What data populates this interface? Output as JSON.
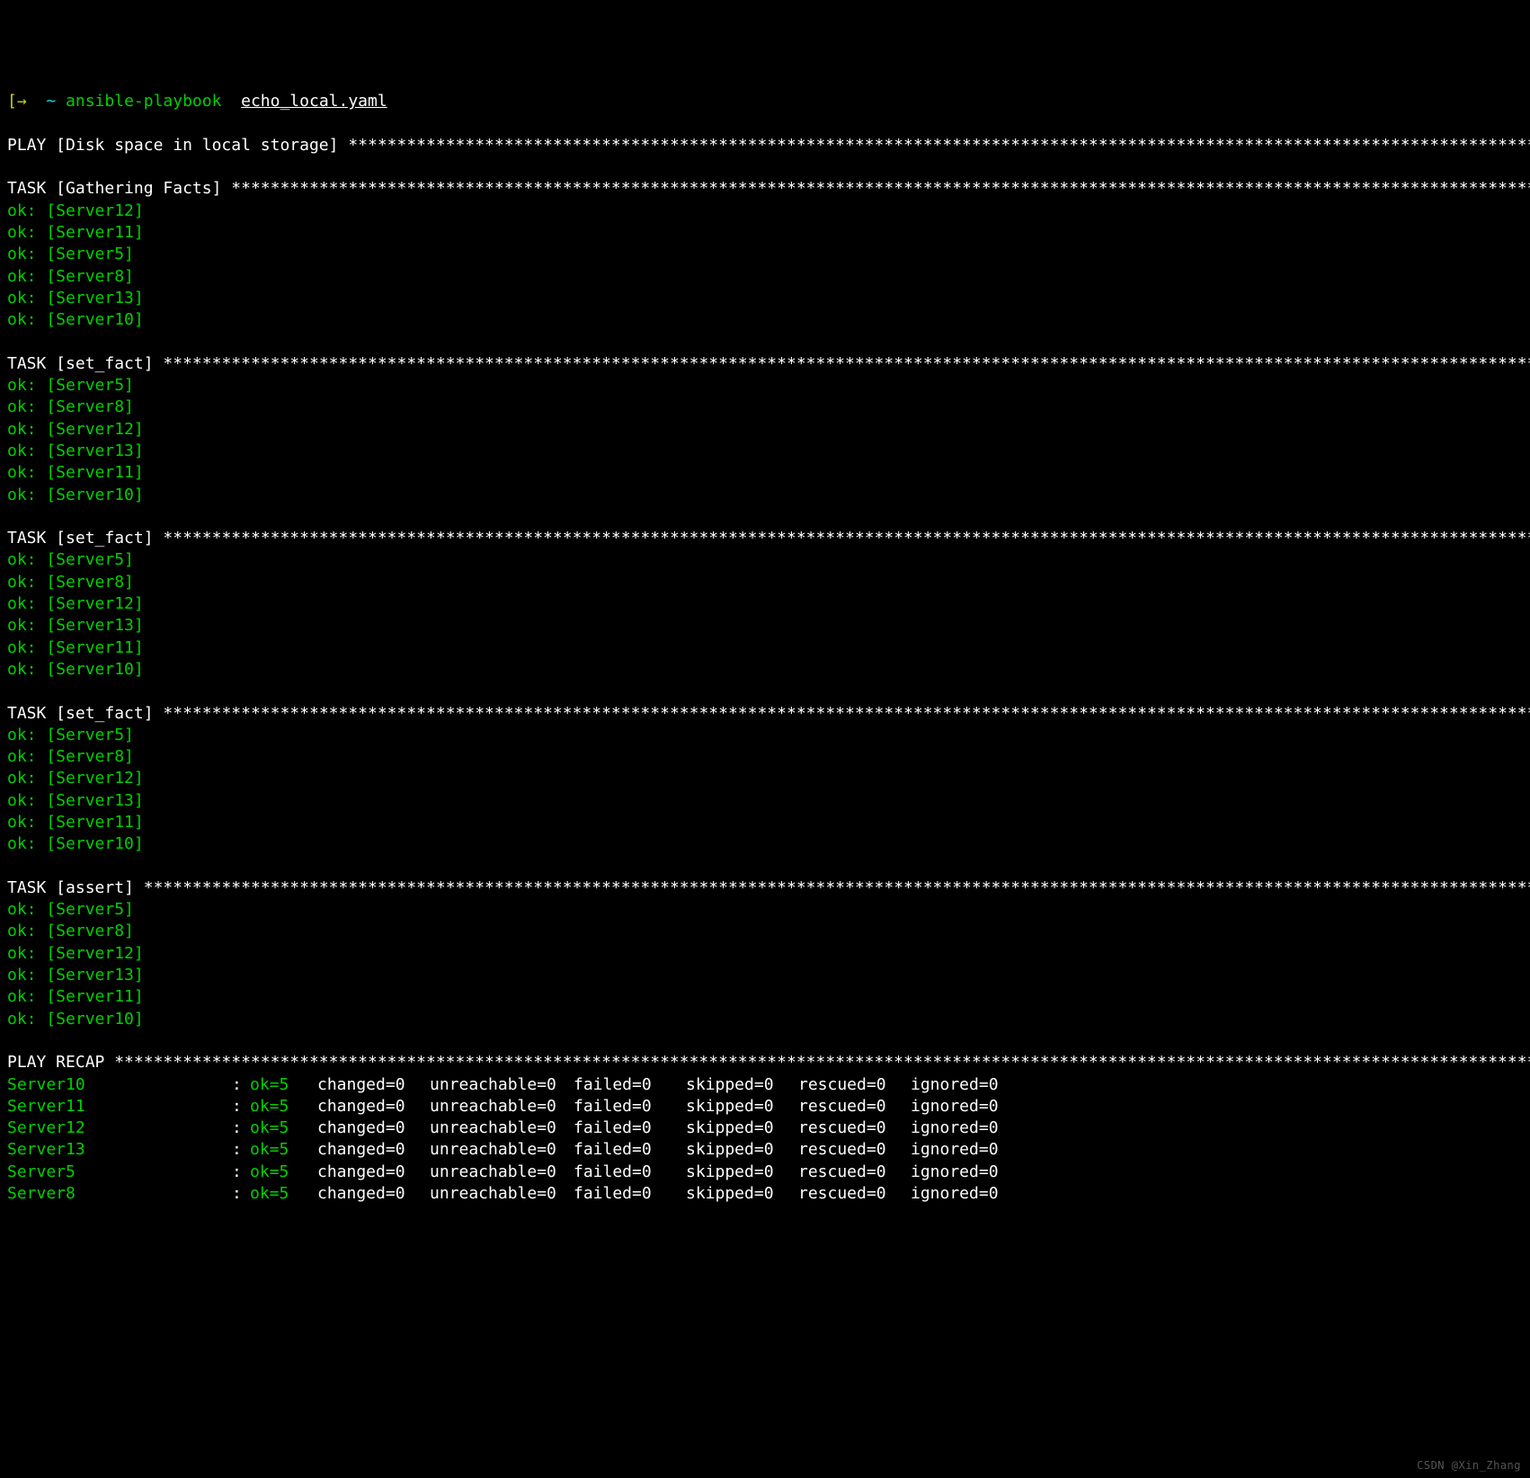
{
  "colors": {
    "background": "#000000",
    "foreground": "#ffffff",
    "ok_green": "#00d000",
    "prompt_cyan": "#00e0e0",
    "prompt_arrow": "#d0d000"
  },
  "prompt": {
    "arrow": "[→",
    "tilde": "~",
    "command": "ansible-playbook",
    "arg": "echo_local.yaml"
  },
  "play_header": {
    "prefix": "PLAY",
    "name": "Disk space in local storage"
  },
  "tasks": [
    {
      "name": "Gathering Facts",
      "results": [
        {
          "status": "ok",
          "host": "Server12"
        },
        {
          "status": "ok",
          "host": "Server11"
        },
        {
          "status": "ok",
          "host": "Server5"
        },
        {
          "status": "ok",
          "host": "Server8"
        },
        {
          "status": "ok",
          "host": "Server13"
        },
        {
          "status": "ok",
          "host": "Server10"
        }
      ]
    },
    {
      "name": "set_fact",
      "results": [
        {
          "status": "ok",
          "host": "Server5"
        },
        {
          "status": "ok",
          "host": "Server8"
        },
        {
          "status": "ok",
          "host": "Server12"
        },
        {
          "status": "ok",
          "host": "Server13"
        },
        {
          "status": "ok",
          "host": "Server11"
        },
        {
          "status": "ok",
          "host": "Server10"
        }
      ]
    },
    {
      "name": "set_fact",
      "results": [
        {
          "status": "ok",
          "host": "Server5"
        },
        {
          "status": "ok",
          "host": "Server8"
        },
        {
          "status": "ok",
          "host": "Server12"
        },
        {
          "status": "ok",
          "host": "Server13"
        },
        {
          "status": "ok",
          "host": "Server11"
        },
        {
          "status": "ok",
          "host": "Server10"
        }
      ]
    },
    {
      "name": "set_fact",
      "results": [
        {
          "status": "ok",
          "host": "Server5"
        },
        {
          "status": "ok",
          "host": "Server8"
        },
        {
          "status": "ok",
          "host": "Server12"
        },
        {
          "status": "ok",
          "host": "Server13"
        },
        {
          "status": "ok",
          "host": "Server11"
        },
        {
          "status": "ok",
          "host": "Server10"
        }
      ]
    },
    {
      "name": "assert",
      "results": [
        {
          "status": "ok",
          "host": "Server5"
        },
        {
          "status": "ok",
          "host": "Server8"
        },
        {
          "status": "ok",
          "host": "Server12"
        },
        {
          "status": "ok",
          "host": "Server13"
        },
        {
          "status": "ok",
          "host": "Server11"
        },
        {
          "status": "ok",
          "host": "Server10"
        }
      ]
    }
  ],
  "task_prefix": "TASK",
  "recap": {
    "header": "PLAY RECAP",
    "separator": ":",
    "columns": [
      "ok",
      "changed",
      "unreachable",
      "failed",
      "skipped",
      "rescued",
      "ignored"
    ],
    "rows": [
      {
        "host": "Server10",
        "ok": 5,
        "changed": 0,
        "unreachable": 0,
        "failed": 0,
        "skipped": 0,
        "rescued": 0,
        "ignored": 0
      },
      {
        "host": "Server11",
        "ok": 5,
        "changed": 0,
        "unreachable": 0,
        "failed": 0,
        "skipped": 0,
        "rescued": 0,
        "ignored": 0
      },
      {
        "host": "Server12",
        "ok": 5,
        "changed": 0,
        "unreachable": 0,
        "failed": 0,
        "skipped": 0,
        "rescued": 0,
        "ignored": 0
      },
      {
        "host": "Server13",
        "ok": 5,
        "changed": 0,
        "unreachable": 0,
        "failed": 0,
        "skipped": 0,
        "rescued": 0,
        "ignored": 0
      },
      {
        "host": "Server5",
        "ok": 5,
        "changed": 0,
        "unreachable": 0,
        "failed": 0,
        "skipped": 0,
        "rescued": 0,
        "ignored": 0
      },
      {
        "host": "Server8",
        "ok": 5,
        "changed": 0,
        "unreachable": 0,
        "failed": 0,
        "skipped": 0,
        "rescued": 0,
        "ignored": 0
      }
    ]
  },
  "watermark": "CSDN @Xin_Zhang"
}
